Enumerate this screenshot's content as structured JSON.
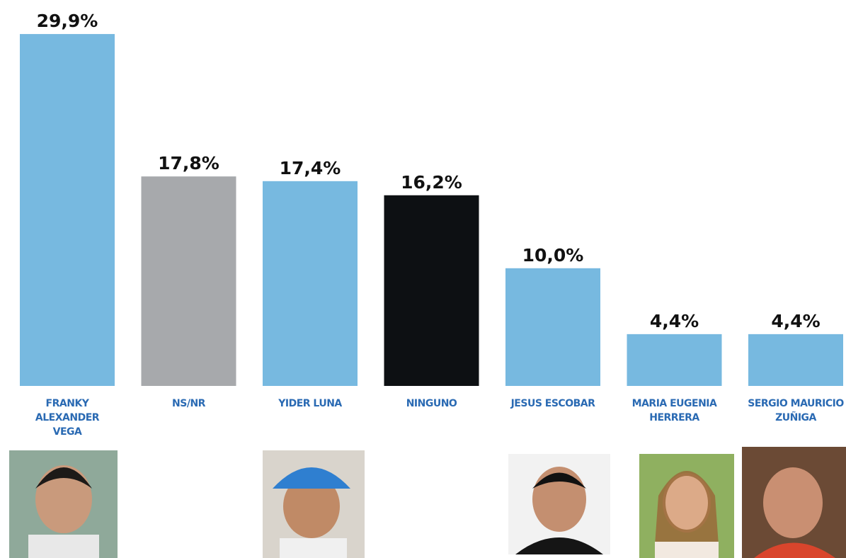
{
  "chart_data": {
    "type": "bar",
    "categories": [
      "FRANKY ALEXANDER VEGA",
      "NS/NR",
      "YIDER LUNA",
      "NINGUNO",
      "JESUS ESCOBAR",
      "MARIA EUGENIA HERRERA",
      "SERGIO MAURICIO ZUÑIGA"
    ],
    "values": [
      29.9,
      17.8,
      17.4,
      16.2,
      10.0,
      4.4,
      4.4
    ],
    "value_labels": [
      "29,9%",
      "17,8%",
      "17,4%",
      "16,2%",
      "10,0%",
      "4,4%",
      "4,4%"
    ],
    "colors": [
      "#77b9e0",
      "#a7a9ac",
      "#77b9e0",
      "#0d1013",
      "#77b9e0",
      "#77b9e0",
      "#77b9e0"
    ]
  }
}
